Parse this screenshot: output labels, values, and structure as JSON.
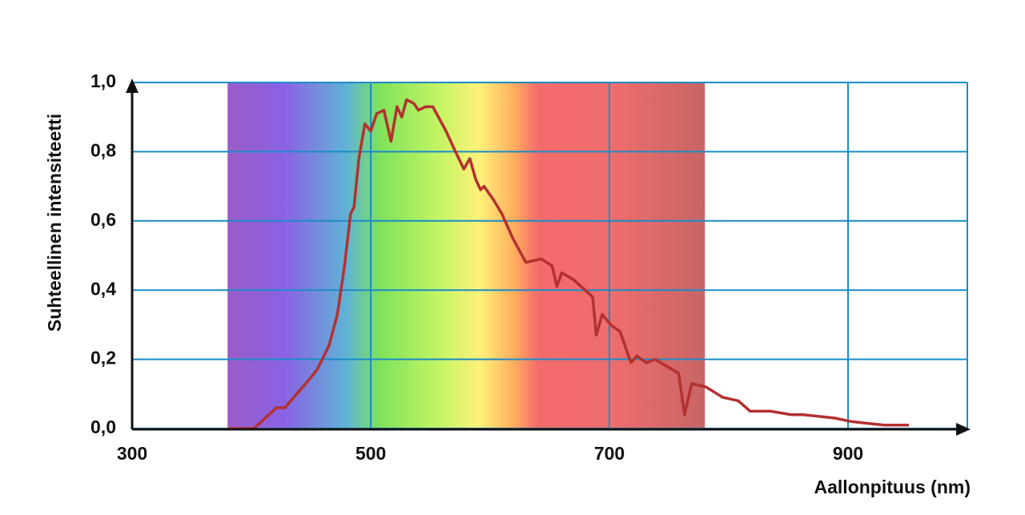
{
  "chart_data": {
    "type": "line",
    "y_label": "Suhteellinen intensiteetti",
    "x_label": "Aallonpituus (nm)",
    "xlim": [
      300,
      1000
    ],
    "ylim": [
      0,
      1
    ],
    "xticks": [
      300,
      500,
      700,
      900
    ],
    "yticks": [
      {
        "value": 0,
        "label": "0,0"
      },
      {
        "value": 0.2,
        "label": "0,2"
      },
      {
        "value": 0.4,
        "label": "0,4"
      },
      {
        "value": 0.6,
        "label": "0,6"
      },
      {
        "value": 0.8,
        "label": "0,8"
      },
      {
        "value": 1,
        "label": "1,0"
      }
    ],
    "grid": true,
    "spectrum_band": [
      380,
      780
    ],
    "color": "#b3312f",
    "x": [
      380,
      402,
      421,
      428,
      438,
      448,
      455,
      465,
      472,
      478,
      483,
      486,
      490,
      495,
      500,
      505,
      511,
      517,
      522,
      526,
      530,
      536,
      540,
      546,
      552,
      563,
      571,
      578,
      583,
      588,
      592,
      595,
      603,
      610,
      619,
      630,
      643,
      652,
      656,
      660,
      670,
      686,
      689,
      694,
      701,
      709,
      718,
      723,
      731,
      738,
      748,
      758,
      763,
      769,
      781,
      795,
      808,
      818,
      835,
      852,
      862,
      889,
      903,
      930,
      951
    ],
    "values": [
      0,
      0,
      0.06,
      0.06,
      0.1,
      0.14,
      0.17,
      0.24,
      0.33,
      0.47,
      0.62,
      0.64,
      0.78,
      0.88,
      0.86,
      0.91,
      0.92,
      0.83,
      0.93,
      0.9,
      0.95,
      0.94,
      0.92,
      0.93,
      0.93,
      0.86,
      0.8,
      0.75,
      0.78,
      0.72,
      0.69,
      0.7,
      0.66,
      0.62,
      0.55,
      0.48,
      0.49,
      0.47,
      0.41,
      0.45,
      0.43,
      0.38,
      0.27,
      0.33,
      0.3,
      0.28,
      0.19,
      0.21,
      0.19,
      0.2,
      0.18,
      0.16,
      0.04,
      0.13,
      0.12,
      0.09,
      0.08,
      0.05,
      0.05,
      0.04,
      0.04,
      0.03,
      0.02,
      0.01,
      0.01
    ]
  }
}
